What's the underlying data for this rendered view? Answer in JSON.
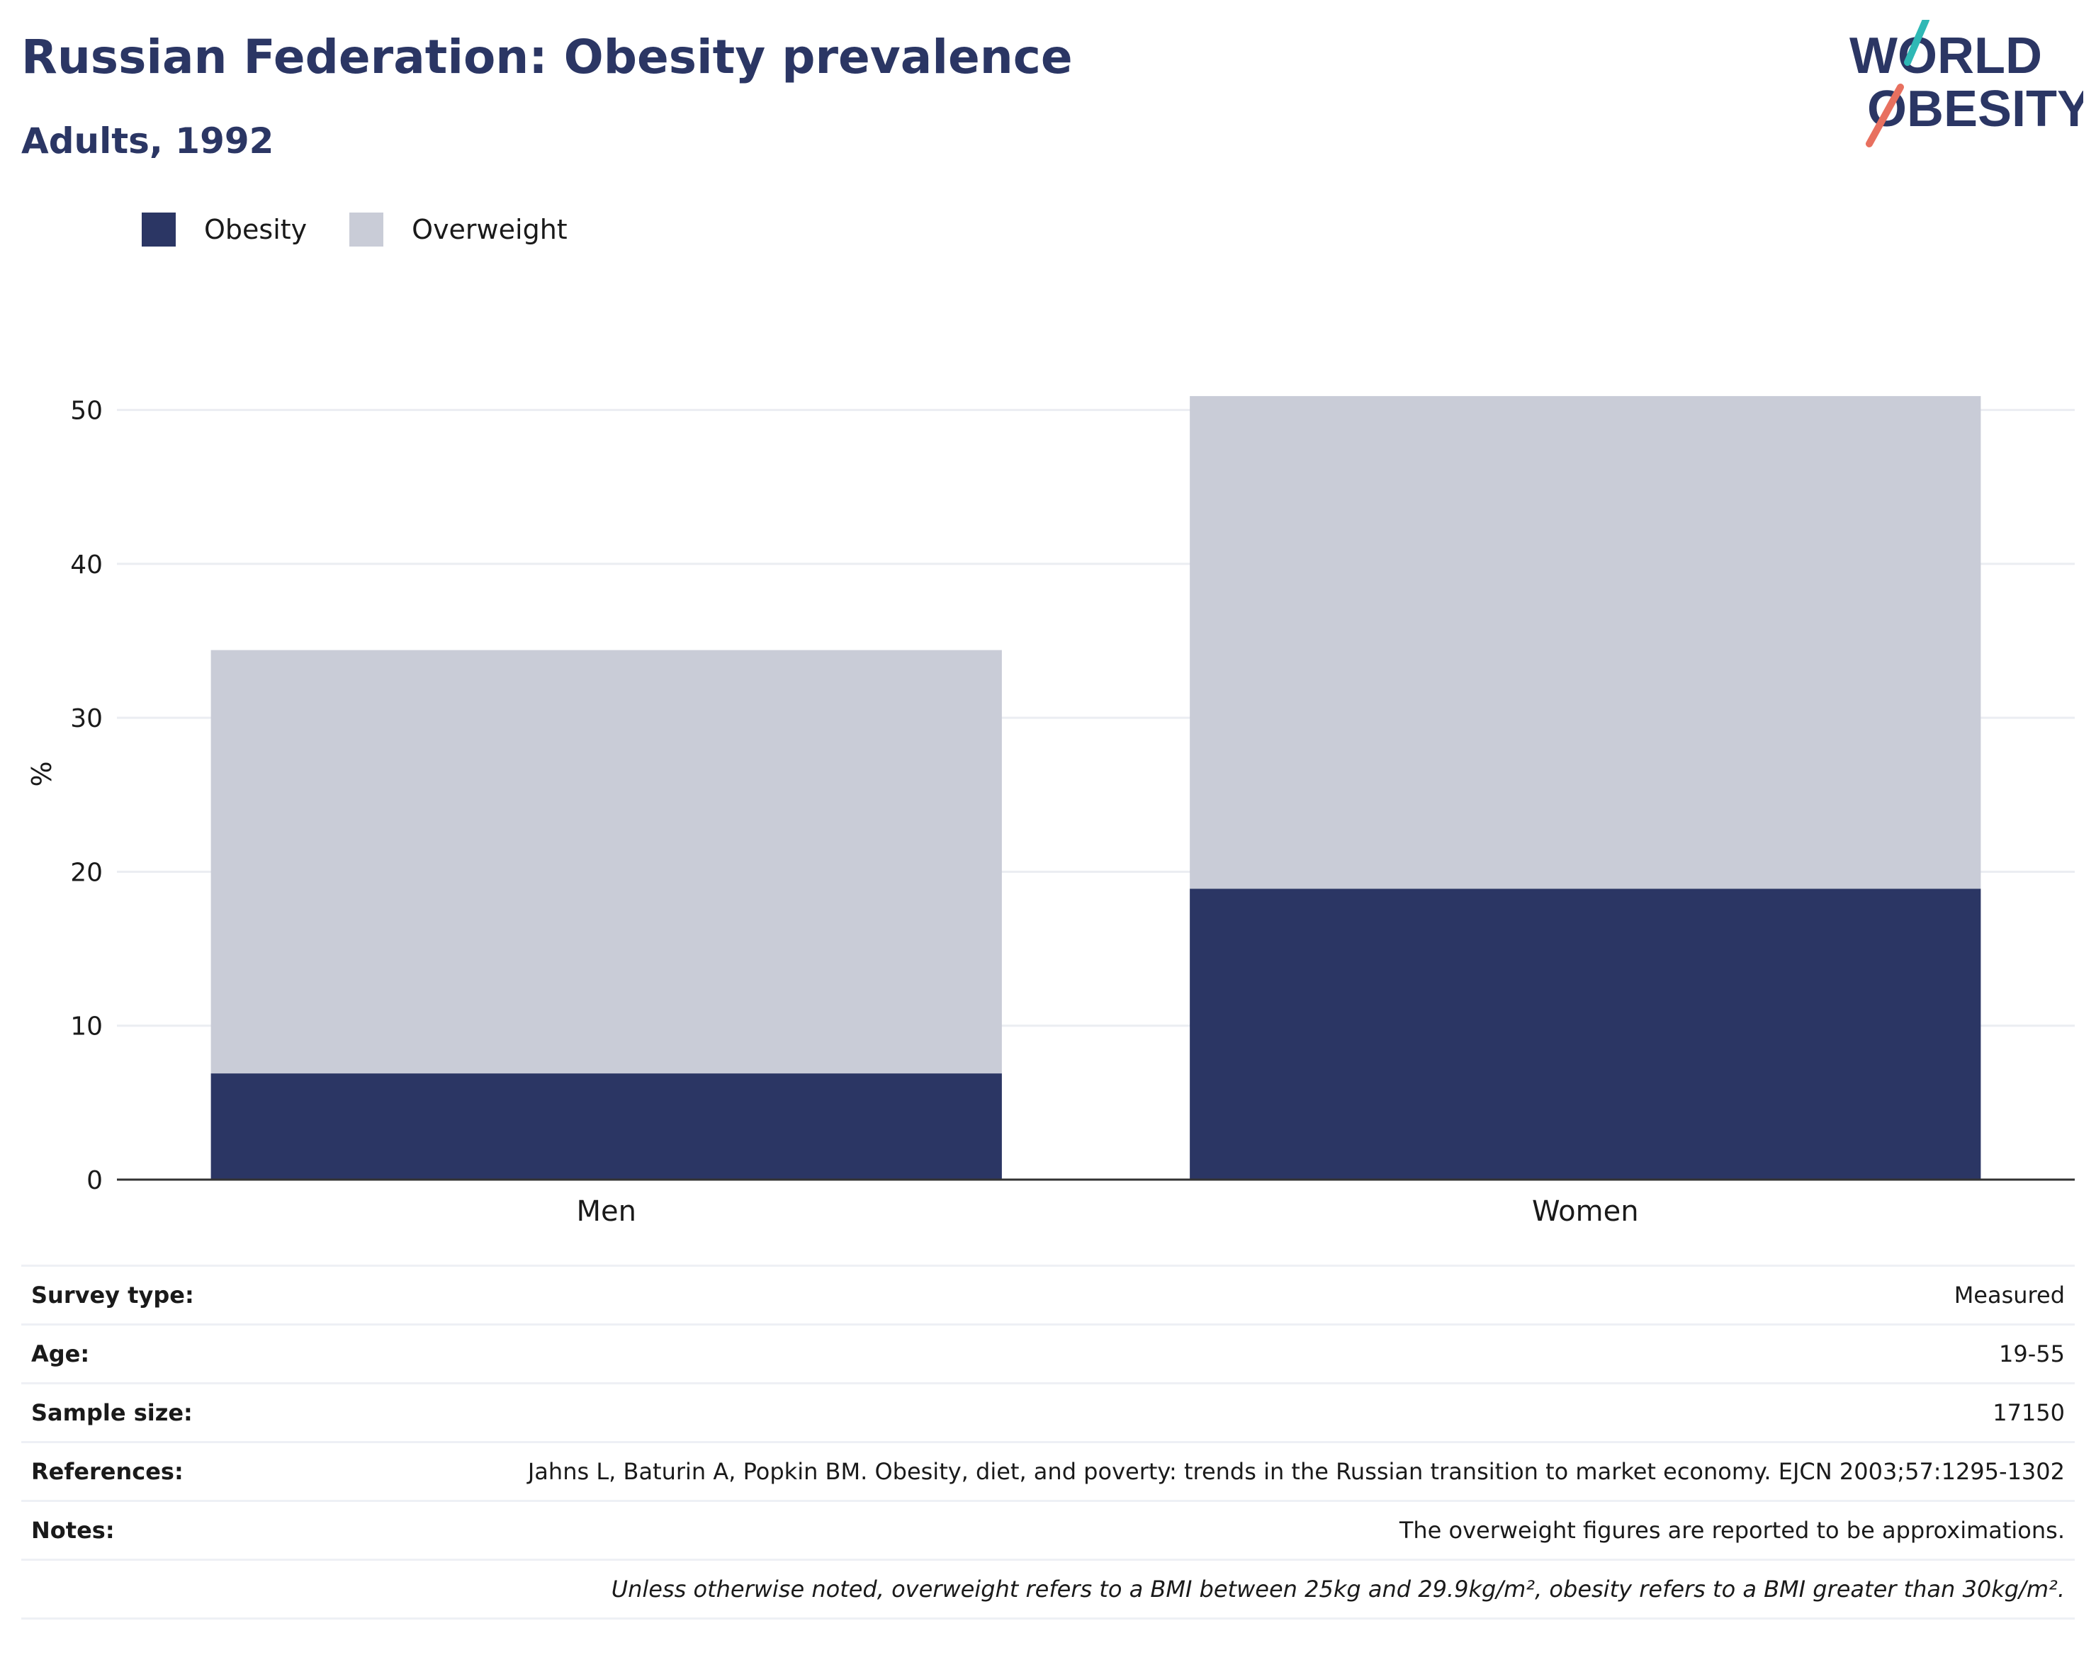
{
  "title": "Russian Federation: Obesity prevalence",
  "subtitle": "Adults, 1992",
  "logo": {
    "line1": "WORLD",
    "line2": "OBESITY",
    "colors": {
      "text": "#2b3664",
      "teal": "#2fb8b5",
      "coral": "#e8705f"
    }
  },
  "legend": [
    {
      "label": "Obesity",
      "color": "#2b3664"
    },
    {
      "label": "Overweight",
      "color": "#c9ccd7"
    }
  ],
  "chart_data": {
    "type": "bar",
    "stacked": true,
    "categories": [
      "Men",
      "Women"
    ],
    "series": [
      {
        "name": "Obesity",
        "values": [
          6.9,
          18.9
        ],
        "color": "#2b3664"
      },
      {
        "name": "Overweight",
        "values": [
          27.5,
          32.0
        ],
        "color": "#c9ccd7"
      }
    ],
    "ylabel": "%",
    "xlabel": "",
    "ylim": [
      0,
      55
    ],
    "yticks": [
      0,
      10,
      20,
      30,
      40,
      50
    ],
    "grid": true
  },
  "info": {
    "rows": [
      {
        "key": "Survey type:",
        "value": "Measured"
      },
      {
        "key": "Age:",
        "value": "19-55"
      },
      {
        "key": "Sample size:",
        "value": "17150"
      },
      {
        "key": "References:",
        "value": "Jahns L, Baturin A, Popkin BM. Obesity, diet, and poverty: trends in the Russian transition to market economy. EJCN 2003;57:1295-1302"
      },
      {
        "key": "Notes:",
        "value": "The overweight figures are reported to be approximations."
      }
    ],
    "footnote": "Unless otherwise noted, overweight refers to a BMI between 25kg and 29.9kg/m², obesity refers to a BMI greater than 30kg/m²."
  }
}
